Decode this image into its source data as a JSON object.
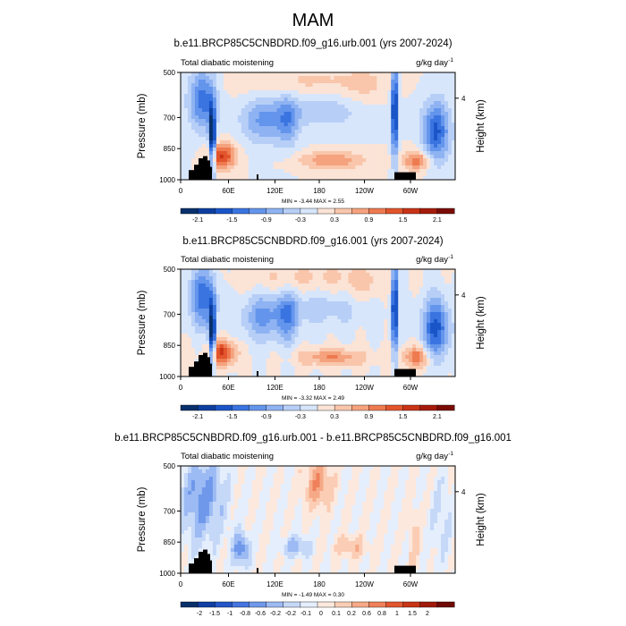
{
  "page": {
    "title": "MAM"
  },
  "chart_data": {
    "type": "heatmap",
    "panels": [
      {
        "title": "b.e11.BRCP85C5CNBDRD.f09_g16.urb.001 (yrs 2007-2024)",
        "left_string": "Total diabatic moistening",
        "right_string": "g/kg day",
        "right_string_exp": "-1",
        "ylabel": "Pressure (mb)",
        "y2label": "Height (km)",
        "y2ticks": [
          "4"
        ],
        "yticks": [
          "500",
          "700",
          "850",
          "1000"
        ],
        "xticks": [
          "0",
          "60E",
          "120E",
          "180",
          "120W",
          "60W"
        ],
        "min_max": "MIN = -3.44  MAX = 2.55",
        "colorbar_labels": [
          "-2.1",
          "-1.5",
          "-0.9",
          "-0.3",
          "0.3",
          "0.9",
          "1.5",
          "2.1"
        ]
      },
      {
        "title": "b.e11.BRCP85C5CNBDRD.f09_g16.001 (yrs 2007-2024)",
        "left_string": "Total diabatic moistening",
        "right_string": "g/kg day",
        "right_string_exp": "-1",
        "ylabel": "Pressure (mb)",
        "y2label": "Height (km)",
        "y2ticks": [
          "4"
        ],
        "yticks": [
          "500",
          "700",
          "850",
          "1000"
        ],
        "xticks": [
          "0",
          "60E",
          "120E",
          "180",
          "120W",
          "60W"
        ],
        "min_max": "MIN = -3.32  MAX = 2.49",
        "colorbar_labels": [
          "-2.1",
          "-1.5",
          "-0.9",
          "-0.3",
          "0.3",
          "0.9",
          "1.5",
          "2.1"
        ]
      },
      {
        "title": "b.e11.BRCP85C5CNBDRD.f09_g16.urb.001 - b.e11.BRCP85C5CNBDRD.f09_g16.001",
        "left_string": "Total diabatic moistening",
        "right_string": "g/kg day",
        "right_string_exp": "-1",
        "ylabel": "Pressure (mb)",
        "y2label": "Height (km)",
        "y2ticks": [
          "4"
        ],
        "yticks": [
          "500",
          "700",
          "850",
          "1000"
        ],
        "xticks": [
          "0",
          "60E",
          "120E",
          "180",
          "120W",
          "60W"
        ],
        "min_max": "MIN = -1.49  MAX = 0.30",
        "colorbar_labels": [
          "-2",
          "-1.5",
          "-1",
          "-0.8",
          "-0.6",
          "-0.2",
          "-0.2",
          "-0.1",
          "0",
          "0.1",
          "0.2",
          "0.6",
          "0.8",
          "1",
          "1.5",
          "2"
        ]
      }
    ],
    "colors": {
      "abs_scale": [
        "#08306b",
        "#0d3fa0",
        "#1a55c8",
        "#3a74e0",
        "#6495ec",
        "#8fb3f2",
        "#b7cff7",
        "#d8e6fb",
        "#fbe3d6",
        "#f9c6ab",
        "#f5a27e",
        "#ee7a50",
        "#e2542c",
        "#c93316",
        "#a51b0b",
        "#7a0c05"
      ],
      "diff_scale": [
        "#08306b",
        "#103ea3",
        "#2456c8",
        "#4474df",
        "#6f98eb",
        "#9cbaf3",
        "#c5d8f8",
        "#e5eefc",
        "#fde8dd",
        "#fbcdb4",
        "#f6a987",
        "#ef8059",
        "#e25630",
        "#c83516",
        "#a01a0a",
        "#6f0a04"
      ],
      "land": "#000000"
    }
  }
}
